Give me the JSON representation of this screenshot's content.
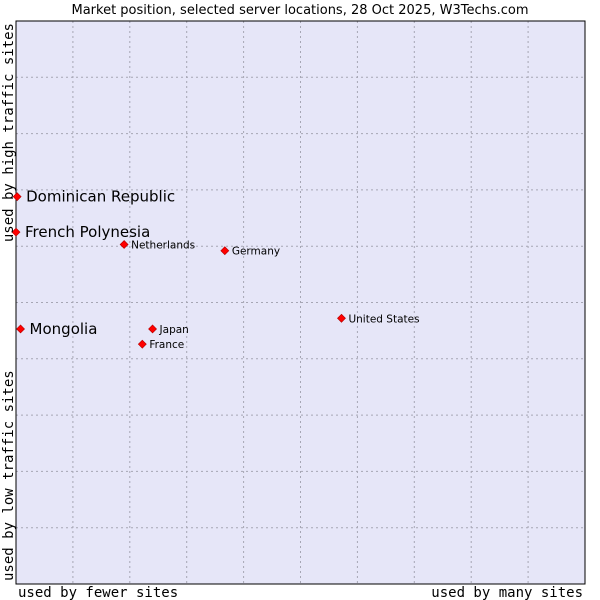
{
  "chart_data": {
    "type": "scatter",
    "title": "Market position, selected server locations, 28 Oct 2025, W3Techs.com",
    "xlabel_low": "used by fewer sites",
    "xlabel_high": "used by many sites",
    "ylabel_low": "used by low traffic sites",
    "ylabel_high": "used by high traffic sites",
    "xlim": [
      0,
      100
    ],
    "ylim": [
      0,
      100
    ],
    "grid": true,
    "colors": {
      "plot_background": "#e6e6f8",
      "grid": "#a6a6b4",
      "marker": "#ff0000",
      "marker_edge": "#b00000",
      "frame": "#000000"
    },
    "points": [
      {
        "name": "Dominican Republic",
        "x": 0.2,
        "y": 68.8,
        "highlight": true
      },
      {
        "name": "French Polynesia",
        "x": 0.0,
        "y": 62.5,
        "highlight": true
      },
      {
        "name": "Mongolia",
        "x": 0.8,
        "y": 45.3,
        "highlight": true
      },
      {
        "name": "Netherlands",
        "x": 19.0,
        "y": 60.3,
        "highlight": false
      },
      {
        "name": "Germany",
        "x": 36.7,
        "y": 59.2,
        "highlight": false
      },
      {
        "name": "United States",
        "x": 57.2,
        "y": 47.2,
        "highlight": false
      },
      {
        "name": "Japan",
        "x": 24.0,
        "y": 45.3,
        "highlight": false
      },
      {
        "name": "France",
        "x": 22.2,
        "y": 42.6,
        "highlight": false
      }
    ]
  }
}
